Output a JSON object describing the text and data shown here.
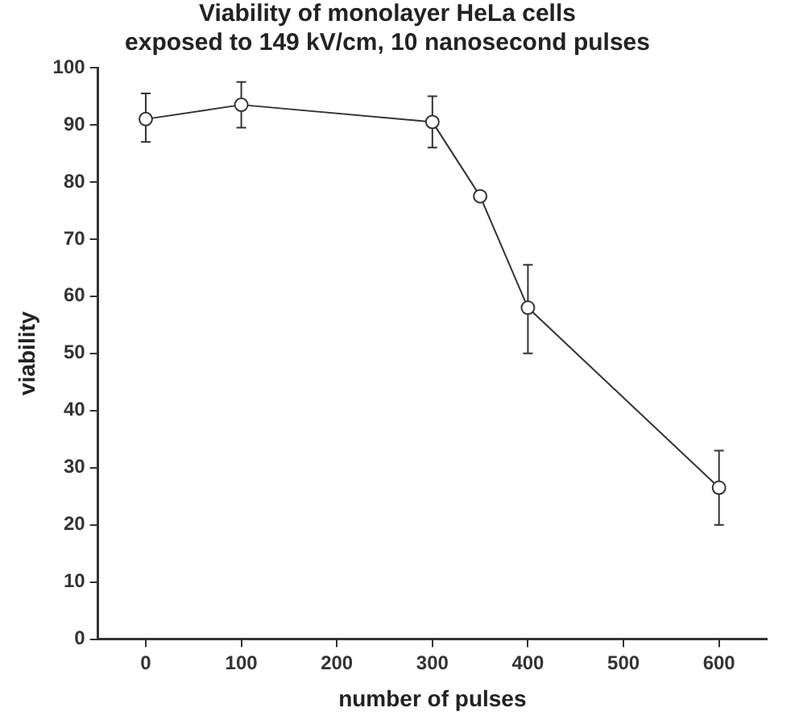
{
  "chart_data": {
    "type": "line",
    "title": "Viability of monolayer HeLa cells\nexposed to 149 kV/cm, 10 nanosecond pulses",
    "xlabel": "number of pulses",
    "ylabel": "viability",
    "x": [
      0,
      100,
      300,
      350,
      400,
      600
    ],
    "series": [
      {
        "color": "#333333",
        "values": [
          91,
          93.5,
          90.5,
          77.5,
          58,
          26.5
        ],
        "errors": [
          [
            87,
            95.5
          ],
          [
            89.5,
            97.5
          ],
          [
            86,
            95
          ],
          null,
          [
            50,
            65.5
          ],
          [
            20,
            33
          ]
        ]
      }
    ],
    "xlim": [
      -50,
      650
    ],
    "xticks": [
      0,
      100,
      200,
      300,
      400,
      500,
      600
    ],
    "ylim": [
      0,
      100
    ],
    "yticks": [
      0,
      10,
      20,
      30,
      40,
      50,
      60,
      70,
      80,
      90,
      100
    ],
    "grid": false,
    "legend": false,
    "marker": "circle",
    "line_style": "solid"
  }
}
